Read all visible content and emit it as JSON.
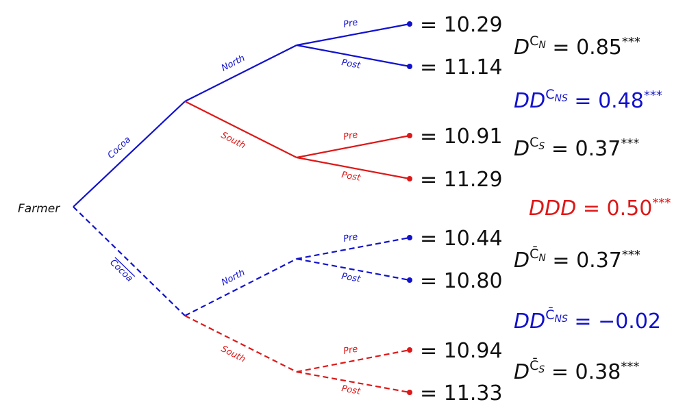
{
  "colors": {
    "blue": "#1111cc",
    "red": "#dd1818",
    "black": "#111111"
  },
  "root": "Farmer",
  "branches": {
    "cocoa": "Cocoa",
    "not_cocoa": "Cocoa",
    "north": "North",
    "south": "South",
    "pre": "Pre",
    "post": "Post"
  },
  "leaves": [
    "= 10.29",
    "= 11.14",
    "= 10.91",
    "= 11.29",
    "= 10.44",
    "= 10.80",
    "= 10.94",
    "= 11.33"
  ],
  "estimates": [
    {
      "base": "D",
      "sup": "C",
      "sub": "N",
      "value": "= 0.85",
      "stars": "***"
    },
    {
      "base": "DD",
      "sup": "C",
      "sub": "NS",
      "value": "= 0.48",
      "stars": "***"
    },
    {
      "base": "D",
      "sup": "C",
      "sub": "S",
      "value": "= 0.37",
      "stars": "***"
    },
    {
      "base": "DDD",
      "value": "= 0.50",
      "stars": "***"
    },
    {
      "base": "D",
      "sup": "C̄",
      "sub": "N",
      "value": "= 0.37",
      "stars": "***"
    },
    {
      "base": "DD",
      "sup": "C̄",
      "sub": "NS",
      "value": "= −0.02",
      "stars": ""
    },
    {
      "base": "D",
      "sup": "C̄",
      "sub": "S",
      "value": "= 0.38",
      "stars": "***"
    }
  ]
}
